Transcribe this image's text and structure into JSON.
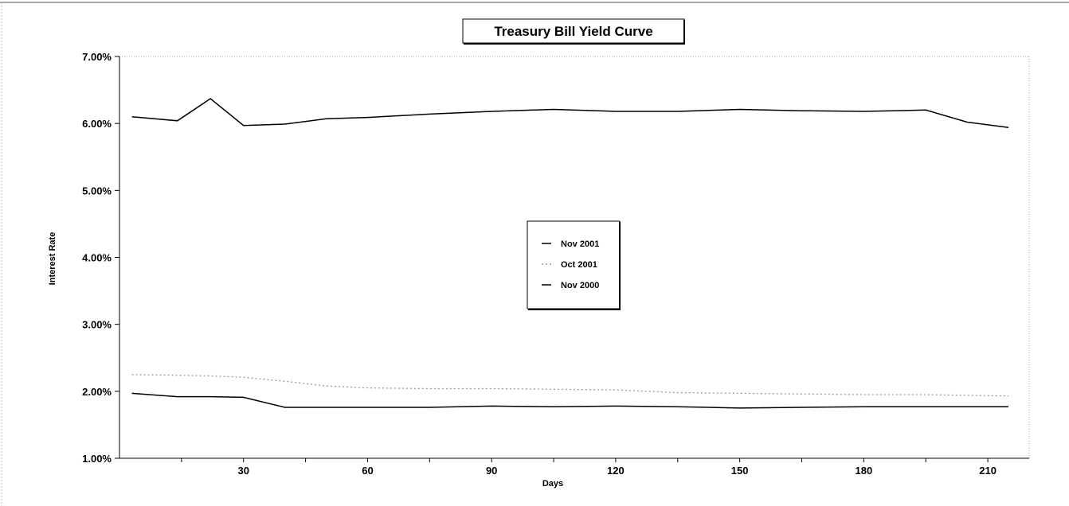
{
  "chart_data": {
    "type": "line",
    "title": "Treasury Bill Yield Curve",
    "xlabel": "Days",
    "ylabel": "Interest Rate",
    "xlim": [
      0,
      220
    ],
    "ylim": [
      1.0,
      7.0
    ],
    "x_ticks": [
      30,
      60,
      90,
      120,
      150,
      180,
      210
    ],
    "y_ticks": [
      "1.00%",
      "2.00%",
      "3.00%",
      "4.00%",
      "5.00%",
      "6.00%",
      "7.00%"
    ],
    "y_tick_values": [
      1,
      2,
      3,
      4,
      5,
      6,
      7
    ],
    "legend_position": "center",
    "grid": false,
    "series": [
      {
        "name": "Nov 2001",
        "color": "#000000",
        "x": [
          3,
          14,
          22,
          30,
          40,
          50,
          60,
          75,
          90,
          105,
          120,
          135,
          150,
          165,
          180,
          195,
          205,
          215
        ],
        "values": [
          1.97,
          1.92,
          1.92,
          1.91,
          1.76,
          1.76,
          1.76,
          1.76,
          1.78,
          1.77,
          1.78,
          1.77,
          1.75,
          1.76,
          1.77,
          1.77,
          1.77,
          1.77
        ]
      },
      {
        "name": "Oct 2001",
        "color": "#9a9a9a",
        "x": [
          3,
          14,
          22,
          30,
          40,
          50,
          60,
          75,
          90,
          105,
          120,
          135,
          150,
          165,
          180,
          195,
          205,
          215
        ],
        "values": [
          2.25,
          2.24,
          2.23,
          2.21,
          2.15,
          2.08,
          2.05,
          2.04,
          2.04,
          2.03,
          2.02,
          1.98,
          1.97,
          1.96,
          1.95,
          1.95,
          1.94,
          1.93
        ]
      },
      {
        "name": "Nov 2000",
        "color": "#000000",
        "x": [
          3,
          14,
          22,
          30,
          40,
          50,
          60,
          75,
          90,
          105,
          120,
          135,
          150,
          165,
          180,
          195,
          205,
          215
        ],
        "values": [
          6.1,
          6.04,
          6.37,
          5.97,
          5.99,
          6.07,
          6.09,
          6.14,
          6.18,
          6.21,
          6.18,
          6.18,
          6.21,
          6.19,
          6.18,
          6.2,
          6.02,
          5.94
        ]
      }
    ]
  }
}
